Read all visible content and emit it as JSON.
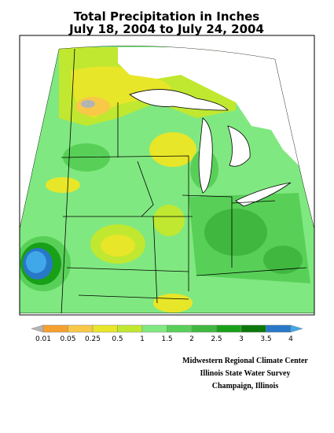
{
  "title": {
    "line1": "Total Precipitation in Inches",
    "line2": "July 18, 2004 to July 24, 2004"
  },
  "legend": {
    "labels": [
      "0.01",
      "0.05",
      "0.25",
      "0.5",
      "1",
      "1.5",
      "2",
      "2.5",
      "3",
      "3.5",
      "4"
    ],
    "colors": [
      "#b4b4b4",
      "#f5a030",
      "#f8c848",
      "#e8e628",
      "#c0e830",
      "#80e880",
      "#58d058",
      "#40b840",
      "#18a018",
      "#0a780a",
      "#2878c8",
      "#40a8e8"
    ]
  },
  "credits": [
    "Midwestern Regional Climate Center",
    "Illinois State Water Survey",
    "Champaign, Illinois"
  ]
}
